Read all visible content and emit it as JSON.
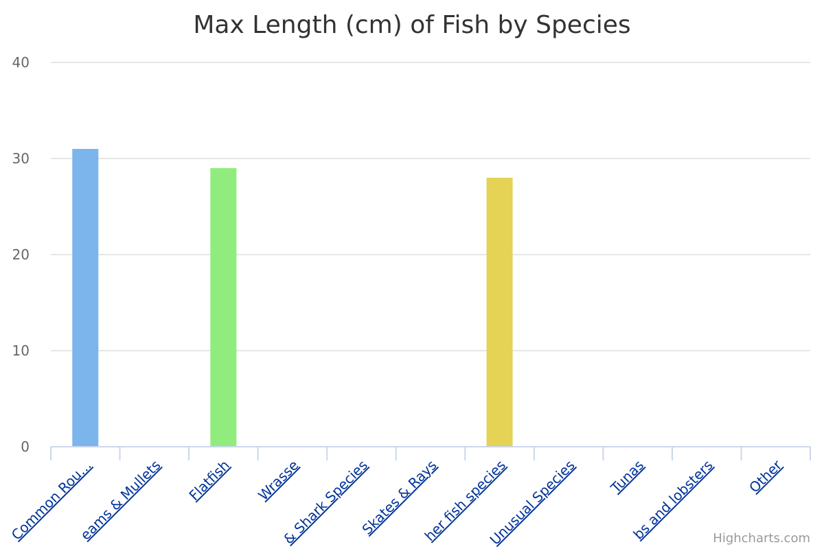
{
  "chart_data": {
    "type": "bar",
    "title": "Max Length (cm) of Fish by Species",
    "xlabel": "",
    "ylabel": "",
    "ylim": [
      0,
      40
    ],
    "yticks": [
      0,
      10,
      20,
      30,
      40
    ],
    "categories": [
      "Common Rou…",
      "Breams & Mullets",
      "Flatfish",
      "Wrasse",
      "Shark Species",
      "Skates & Rays",
      "Other fish species",
      "Unusual Species",
      "Tunas",
      "Crabs and lobsters",
      "Other"
    ],
    "visible_category_labels": [
      "Common Rou…",
      "eams & Mullets",
      "Flatfish",
      "Wrasse",
      "& Shark Species",
      "Skates & Rays",
      "her fish species",
      "Unusual Species",
      "Tunas",
      "bs and lobsters",
      "Other"
    ],
    "values": [
      31,
      0,
      29,
      0,
      0,
      0,
      28,
      0,
      0,
      0,
      0
    ],
    "colors": [
      "#7cb5ec",
      "#7cb5ec",
      "#90ed7d",
      "#90ed7d",
      "#90ed7d",
      "#90ed7d",
      "#e4d354",
      "#e4d354",
      "#e4d354",
      "#e4d354",
      "#e4d354"
    ],
    "grid": true,
    "legend": "none"
  },
  "credits": "Highcharts.com"
}
